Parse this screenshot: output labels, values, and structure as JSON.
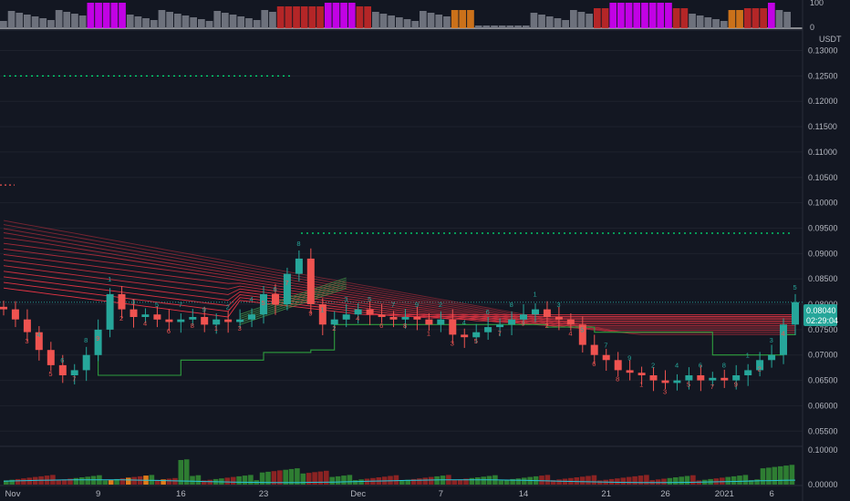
{
  "chart_data": {
    "type": "candlestick",
    "currency_label": "USDT",
    "price_axis": {
      "ticks": [
        "0.13000",
        "0.12500",
        "0.12000",
        "0.11500",
        "0.11000",
        "0.10500",
        "0.10000",
        "0.09500",
        "0.09000",
        "0.08500",
        "0.08000",
        "0.07500",
        "0.07000",
        "0.06500",
        "0.06000",
        "0.05500"
      ],
      "range": [
        0.052,
        0.1335
      ]
    },
    "x_axis": {
      "labels": [
        "Nov",
        "9",
        "16",
        "23",
        "Dec",
        "7",
        "14",
        "21",
        "26",
        "2021",
        "6"
      ]
    },
    "last_price": {
      "value": "0.08040",
      "countdown": "02:29:04",
      "color": "#26a69a"
    },
    "top_indicator": {
      "ticks": [
        "100",
        "0"
      ],
      "range": [
        0,
        100
      ]
    },
    "volume_panel": {
      "ticks": [
        "0.10000",
        "0.00000"
      ],
      "range": [
        0,
        0.1
      ]
    },
    "levels": {
      "resistance_high": 0.125,
      "resistance_mid": 0.094,
      "red_marker": 0.1035
    },
    "colors": {
      "up": "#26a69a",
      "down": "#ef5350",
      "up_bright": "#00c853",
      "ribbon_red": "#f23645",
      "ribbon_green": "#4caf50",
      "support_line": "#2e9e3e",
      "histogram_magenta": "#d500f9",
      "histogram_red": "#c62828",
      "histogram_orange": "#e07b1a",
      "histogram_gray": "#787b86"
    },
    "sequential_counts": [
      "1",
      "2",
      "3",
      "4",
      "5",
      "6",
      "7",
      "8",
      "9"
    ],
    "series_description": "OHLC candles with red/green ribbon overlays"
  }
}
